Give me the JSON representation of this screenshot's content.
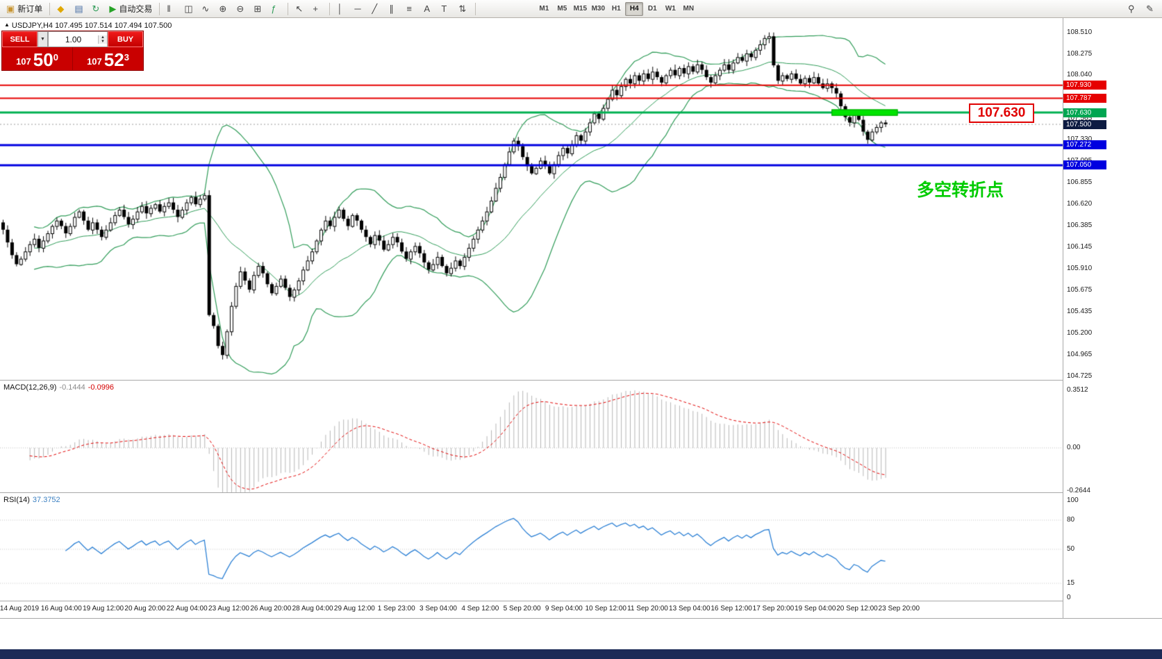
{
  "toolbar": {
    "buttons": [
      {
        "name": "new-order",
        "glyph": "▣",
        "glyph_color": "#c89532",
        "label": "新订单"
      },
      {
        "name": "separator"
      },
      {
        "name": "new-chart",
        "glyph": "◆",
        "glyph_color": "#e0a800"
      },
      {
        "name": "market-watch",
        "glyph": "▤",
        "glyph_color": "#4a6fa5"
      },
      {
        "name": "refresh",
        "glyph": "↻",
        "glyph_color": "#2e9b57"
      },
      {
        "name": "auto-trading",
        "glyph": "▶",
        "glyph_color": "#27a327",
        "label": "自动交易"
      },
      {
        "name": "separator"
      },
      {
        "name": "bars-chart",
        "glyph": "‖"
      },
      {
        "name": "candlestick-chart",
        "glyph": "◫"
      },
      {
        "name": "line-chart",
        "glyph": "∿"
      },
      {
        "name": "zoom-in",
        "glyph": "⊕"
      },
      {
        "name": "zoom-out",
        "glyph": "⊖"
      },
      {
        "name": "tile-windows",
        "glyph": "⊞"
      },
      {
        "name": "indicators",
        "glyph": "ƒ",
        "glyph_color": "#2e9b57"
      },
      {
        "name": "separator"
      },
      {
        "name": "cursor",
        "glyph": "↖"
      },
      {
        "name": "crosshair",
        "glyph": "+"
      },
      {
        "name": "separator"
      },
      {
        "name": "vertical-line",
        "glyph": "│"
      },
      {
        "name": "horizontal-line",
        "glyph": "─"
      },
      {
        "name": "trendline",
        "glyph": "╱"
      },
      {
        "name": "equidistant-channel",
        "glyph": "∥"
      },
      {
        "name": "fibonacci",
        "glyph": "≡"
      },
      {
        "name": "text",
        "glyph": "A"
      },
      {
        "name": "text-label",
        "glyph": "T"
      },
      {
        "name": "arrows",
        "glyph": "⇅"
      },
      {
        "name": "separator"
      }
    ],
    "timeframes": [
      "M1",
      "M5",
      "M15",
      "M30",
      "H1",
      "H4",
      "D1",
      "W1",
      "MN"
    ],
    "active_timeframe": "H4",
    "right_buttons": [
      {
        "name": "search",
        "glyph": "⚲"
      },
      {
        "name": "edit",
        "glyph": "✎"
      }
    ]
  },
  "chart": {
    "title_marker": "▲",
    "title_symbol": "USDJPY,H4",
    "title_ohlc": "107.495 107.514 107.494 107.500",
    "annotation": "多空转折点",
    "zone_price_label": "107.630",
    "levels": {
      "red": [
        107.93,
        107.787
      ],
      "green": [
        107.63
      ],
      "blue": [
        107.272,
        107.05
      ],
      "current_dotted": 107.5
    },
    "zone": {
      "price_top": 107.665,
      "price_bottom": 107.595,
      "start_bar": 185,
      "end_bar": 199
    },
    "price_axis": {
      "ticks": [
        "108.510",
        "108.275",
        "108.040",
        "107.565",
        "107.330",
        "107.095",
        "106.855",
        "106.620",
        "106.385",
        "106.145",
        "105.910",
        "105.675",
        "105.435",
        "105.200",
        "104.965",
        "104.725"
      ],
      "tags": [
        {
          "label": "107.930",
          "color": "#e60000"
        },
        {
          "label": "107.787",
          "color": "#e60000"
        },
        {
          "label": "107.630",
          "color": "#00a651"
        },
        {
          "label": "107.500",
          "color": "#0d1b42"
        },
        {
          "label": "107.272",
          "color": "#0000e0"
        },
        {
          "label": "107.050",
          "color": "#0000e0"
        }
      ]
    }
  },
  "trade_panel": {
    "sell_label": "SELL",
    "buy_label": "BUY",
    "volume": "1.00",
    "sell_prefix": "107",
    "sell_big": "50",
    "sell_sup": "0",
    "buy_prefix": "107",
    "buy_big": "52",
    "buy_sup": "3",
    "stepper_up": "▲",
    "stepper_down": "▼",
    "dropdown": "▼"
  },
  "macd": {
    "name": "MACD(12,26,9)",
    "value1": "-0.1444",
    "value2": "-0.0996",
    "axis": [
      "0.3512",
      "0.00",
      "-0.2644"
    ]
  },
  "rsi": {
    "name": "RSI(14)",
    "value": "37.3752",
    "axis": [
      "100",
      "80",
      "50",
      "15",
      "0"
    ],
    "levels": [
      80,
      50,
      15
    ]
  },
  "time_axis": [
    "14 Aug 2019",
    "16 Aug 04:00",
    "19 Aug 12:00",
    "20 Aug 20:00",
    "22 Aug 04:00",
    "23 Aug 12:00",
    "26 Aug 20:00",
    "28 Aug 04:00",
    "29 Aug 12:00",
    "1 Sep 23:00",
    "3 Sep 04:00",
    "4 Sep 12:00",
    "5 Sep 20:00",
    "9 Sep 04:00",
    "10 Sep 12:00",
    "11 Sep 20:00",
    "13 Sep 04:00",
    "16 Sep 12:00",
    "17 Sep 20:00",
    "19 Sep 04:00",
    "20 Sep 12:00",
    "23 Sep 20:00"
  ],
  "chart_data": {
    "type": "candlestick",
    "symbol": "USDJPY",
    "timeframe": "H4",
    "y_range": [
      104.725,
      108.51
    ],
    "first_open": 106.42,
    "closes": [
      106.34,
      106.2,
      106.06,
      105.96,
      106.02,
      106.1,
      106.18,
      106.24,
      106.14,
      106.22,
      106.3,
      106.38,
      106.44,
      106.38,
      106.3,
      106.38,
      106.48,
      106.54,
      106.44,
      106.34,
      106.42,
      106.34,
      106.26,
      106.34,
      106.42,
      106.5,
      106.56,
      106.48,
      106.4,
      106.46,
      106.54,
      106.6,
      106.52,
      106.58,
      106.62,
      106.54,
      106.6,
      106.64,
      106.56,
      106.48,
      106.56,
      106.64,
      106.7,
      106.62,
      106.68,
      106.72,
      105.4,
      105.28,
      105.06,
      104.96,
      105.22,
      105.5,
      105.72,
      105.88,
      105.78,
      105.68,
      105.84,
      105.94,
      105.86,
      105.74,
      105.64,
      105.72,
      105.8,
      105.7,
      105.6,
      105.68,
      105.78,
      105.9,
      106.0,
      106.1,
      106.22,
      106.34,
      106.44,
      106.38,
      106.48,
      106.56,
      106.46,
      106.38,
      106.5,
      106.44,
      106.34,
      106.26,
      106.18,
      106.28,
      106.22,
      106.12,
      106.18,
      106.26,
      106.2,
      106.1,
      106.02,
      106.1,
      106.16,
      106.08,
      105.98,
      105.9,
      105.96,
      106.04,
      105.94,
      105.86,
      105.92,
      106.0,
      105.94,
      106.04,
      106.14,
      106.24,
      106.34,
      106.44,
      106.54,
      106.66,
      106.8,
      106.92,
      107.06,
      107.2,
      107.32,
      107.26,
      107.14,
      107.04,
      106.96,
      107.02,
      107.1,
      107.04,
      106.96,
      107.06,
      107.16,
      107.24,
      107.18,
      107.28,
      107.38,
      107.32,
      107.42,
      107.52,
      107.62,
      107.56,
      107.68,
      107.78,
      107.88,
      107.82,
      107.92,
      108.0,
      107.95,
      108.04,
      107.98,
      108.06,
      108.0,
      108.08,
      108.02,
      107.96,
      108.04,
      108.1,
      108.04,
      108.12,
      108.06,
      108.14,
      108.08,
      108.16,
      108.1,
      108.02,
      107.96,
      108.04,
      108.1,
      108.16,
      108.1,
      108.18,
      108.24,
      108.2,
      108.28,
      108.24,
      108.32,
      108.38,
      108.45,
      108.47,
      108.15,
      107.98,
      108.04,
      108.0,
      108.06,
      108.0,
      107.95,
      108.01,
      107.96,
      108.02,
      107.95,
      107.9,
      107.95,
      107.9,
      107.84,
      107.7,
      107.58,
      107.52,
      107.6,
      107.55,
      107.42,
      107.33,
      107.42,
      107.47,
      107.52,
      107.5
    ],
    "overlays": [
      {
        "type": "bollinger_bands",
        "period": 20,
        "deviation": 2,
        "color": "#2e9b57"
      }
    ],
    "indicators": [
      {
        "type": "MACD",
        "params": [
          12,
          26,
          9
        ],
        "current": "-0.1444 -0.0996",
        "axis_range": [
          -0.2644,
          0.3512
        ]
      },
      {
        "type": "RSI",
        "params": [
          14
        ],
        "current": 37.3752,
        "axis_range": [
          0,
          100
        ]
      }
    ]
  }
}
